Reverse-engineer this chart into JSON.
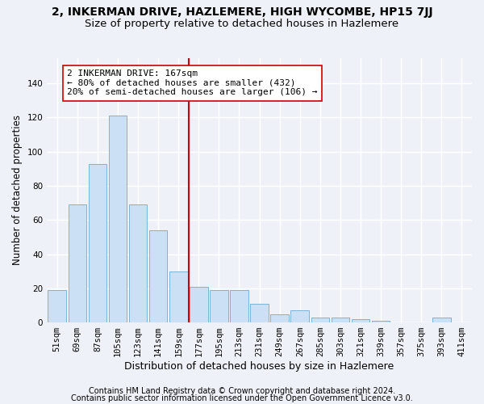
{
  "title": "2, INKERMAN DRIVE, HAZLEMERE, HIGH WYCOMBE, HP15 7JJ",
  "subtitle": "Size of property relative to detached houses in Hazlemere",
  "xlabel": "Distribution of detached houses by size in Hazlemere",
  "ylabel": "Number of detached properties",
  "bin_labels": [
    "51sqm",
    "69sqm",
    "87sqm",
    "105sqm",
    "123sqm",
    "141sqm",
    "159sqm",
    "177sqm",
    "195sqm",
    "213sqm",
    "231sqm",
    "249sqm",
    "267sqm",
    "285sqm",
    "303sqm",
    "321sqm",
    "339sqm",
    "357sqm",
    "375sqm",
    "393sqm",
    "411sqm"
  ],
  "bar_heights": [
    19,
    69,
    93,
    121,
    69,
    54,
    30,
    21,
    19,
    19,
    11,
    5,
    7,
    3,
    3,
    2,
    1,
    0,
    0,
    3,
    0
  ],
  "bar_color": "#cce0f5",
  "bar_edge_color": "#7ab4d8",
  "vline_index": 7,
  "vline_color": "#cc0000",
  "annotation_line1": "2 INKERMAN DRIVE: 167sqm",
  "annotation_line2": "← 80% of detached houses are smaller (432)",
  "annotation_line3": "20% of semi-detached houses are larger (106) →",
  "annotation_box_color": "white",
  "annotation_box_edge_color": "#cc0000",
  "ylim": [
    0,
    155
  ],
  "yticks": [
    0,
    20,
    40,
    60,
    80,
    100,
    120,
    140
  ],
  "footer1": "Contains HM Land Registry data © Crown copyright and database right 2024.",
  "footer2": "Contains public sector information licensed under the Open Government Licence v3.0.",
  "background_color": "#eef2f8",
  "grid_color": "white",
  "title_fontsize": 10,
  "subtitle_fontsize": 9.5,
  "ylabel_fontsize": 8.5,
  "xlabel_fontsize": 9,
  "tick_fontsize": 7.5,
  "annotation_fontsize": 8,
  "footer_fontsize": 7
}
